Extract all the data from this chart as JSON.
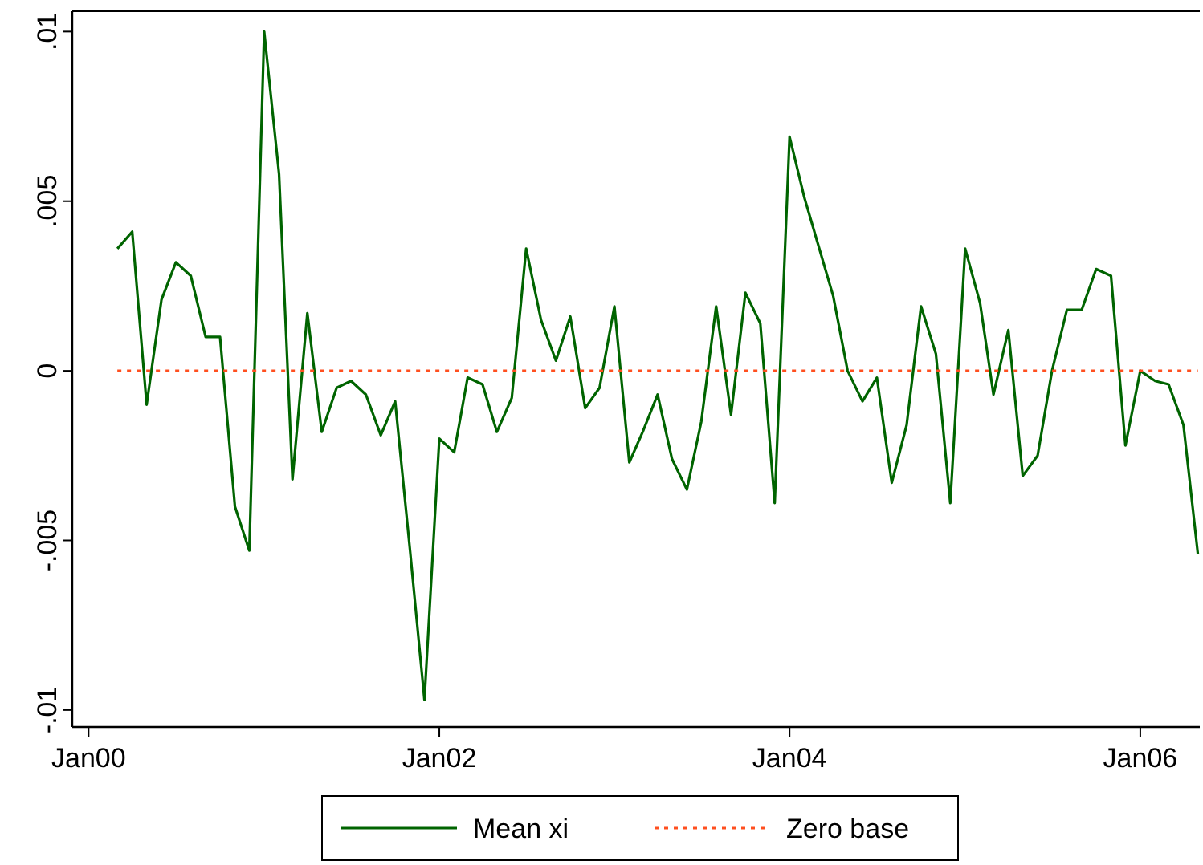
{
  "chart_data": {
    "type": "line",
    "x": [
      "2000-03",
      "2000-04",
      "2000-05",
      "2000-06",
      "2000-07",
      "2000-08",
      "2000-09",
      "2000-10",
      "2000-11",
      "2000-12",
      "2001-01",
      "2001-02",
      "2001-03",
      "2001-04",
      "2001-05",
      "2001-06",
      "2001-07",
      "2001-08",
      "2001-09",
      "2001-10",
      "2001-11",
      "2001-12",
      "2002-01",
      "2002-02",
      "2002-03",
      "2002-04",
      "2002-05",
      "2002-06",
      "2002-07",
      "2002-08",
      "2002-09",
      "2002-10",
      "2002-11",
      "2002-12",
      "2003-01",
      "2003-02",
      "2003-03",
      "2003-04",
      "2003-05",
      "2003-06",
      "2003-07",
      "2003-08",
      "2003-09",
      "2003-10",
      "2003-11",
      "2003-12",
      "2004-01",
      "2004-02",
      "2004-03",
      "2004-04",
      "2004-05",
      "2004-06",
      "2004-07",
      "2004-08",
      "2004-09",
      "2004-10",
      "2004-11",
      "2004-12",
      "2005-01",
      "2005-02",
      "2005-03",
      "2005-04",
      "2005-05",
      "2005-06",
      "2005-07",
      "2005-08",
      "2005-09",
      "2005-10",
      "2005-11",
      "2005-12",
      "2006-01",
      "2006-02",
      "2006-03",
      "2006-04",
      "2006-05"
    ],
    "series": [
      {
        "name": "Mean xi",
        "color": "#006400",
        "line_style": "solid",
        "values": [
          0.0036,
          0.0041,
          -0.001,
          0.0021,
          0.0032,
          0.0028,
          0.001,
          0.001,
          -0.004,
          -0.0053,
          0.01,
          0.0058,
          -0.0032,
          0.0017,
          -0.0018,
          -0.0005,
          -0.0003,
          -0.0007,
          -0.0019,
          -0.0009,
          -0.0053,
          -0.0097,
          -0.002,
          -0.0024,
          -0.0002,
          -0.0004,
          -0.0018,
          -0.0008,
          0.0036,
          0.0015,
          0.0003,
          0.0016,
          -0.0011,
          -0.0005,
          0.0019,
          -0.0027,
          -0.0018,
          -0.0007,
          -0.0026,
          -0.0035,
          -0.0015,
          0.0019,
          -0.0013,
          0.0023,
          0.0014,
          -0.0039,
          0.0069,
          0.0051,
          0.0037,
          0.0022,
          0,
          -0.0009,
          -0.0002,
          -0.0033,
          -0.0016,
          0.0019,
          0.0005,
          -0.0039,
          0.0036,
          0.002,
          -0.0007,
          0.0012,
          -0.0031,
          -0.0025,
          0,
          0.0018,
          0.0018,
          0.003,
          0.0028,
          -0.0022,
          0,
          -0.0003,
          -0.0004,
          -0.0016,
          -0.0054
        ]
      },
      {
        "name": "Zero base",
        "color": "#ff4f1f",
        "line_style": "dotted",
        "values": [
          0,
          0,
          0,
          0,
          0,
          0,
          0,
          0,
          0,
          0,
          0,
          0,
          0,
          0,
          0,
          0,
          0,
          0,
          0,
          0,
          0,
          0,
          0,
          0,
          0,
          0,
          0,
          0,
          0,
          0,
          0,
          0,
          0,
          0,
          0,
          0,
          0,
          0,
          0,
          0,
          0,
          0,
          0,
          0,
          0,
          0,
          0,
          0,
          0,
          0,
          0,
          0,
          0,
          0,
          0,
          0,
          0,
          0,
          0,
          0,
          0,
          0,
          0,
          0,
          0,
          0,
          0,
          0,
          0,
          0,
          0,
          0,
          0,
          0,
          0
        ]
      }
    ],
    "xlim": [
      "1999-11-28",
      "2006-05-05"
    ],
    "xticks": [
      {
        "value": "2000-01",
        "label": "Jan00"
      },
      {
        "value": "2002-01",
        "label": "Jan02"
      },
      {
        "value": "2004-01",
        "label": "Jan04"
      },
      {
        "value": "2006-01",
        "label": "Jan06"
      }
    ],
    "ylim": [
      -0.0105,
      0.0106
    ],
    "yticks": [
      {
        "value": -0.01,
        "label": "-.01"
      },
      {
        "value": -0.005,
        "label": "-.005"
      },
      {
        "value": 0,
        "label": "0"
      },
      {
        "value": 0.005,
        "label": ".005"
      },
      {
        "value": 0.01,
        "label": ".01"
      }
    ],
    "grid": false,
    "legend": "bottom"
  }
}
